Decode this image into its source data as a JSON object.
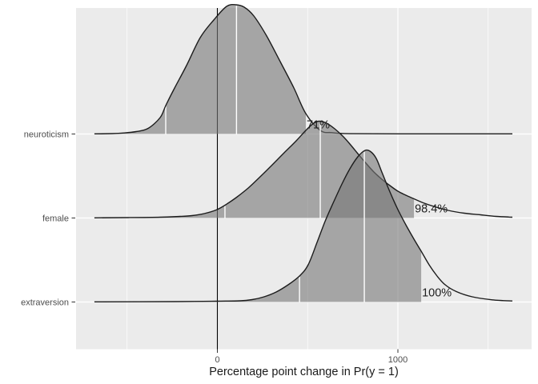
{
  "chart_data": {
    "type": "ridgeline-density",
    "title": "",
    "xlabel": "Percentage point change in Pr(y = 1)",
    "x_axis": {
      "range": [
        -783,
        1741
      ],
      "major_ticks": [
        {
          "value": 0,
          "label": "0"
        },
        {
          "value": 1000,
          "label": "1000"
        }
      ],
      "minor_gridlines": [
        -500,
        500,
        1500
      ],
      "grid": "on"
    },
    "y_axis": {
      "categories_top_to_bottom": [
        "neuroticism",
        "female",
        "extraversion"
      ]
    },
    "reference_line_x": 0,
    "rows": [
      {
        "label": "neuroticism",
        "annotation": "71%",
        "fill_to": 490,
        "quantile_lines": [
          -286,
          106
        ],
        "curve_range": [
          -681,
          1634
        ],
        "points": [
          [
            -681,
            0.2
          ],
          [
            -583,
            0.5
          ],
          [
            -517,
            1.3
          ],
          [
            -450,
            3
          ],
          [
            -384,
            7
          ],
          [
            -317,
            20.5
          ],
          [
            -286,
            35.5
          ],
          [
            -237,
            57.5
          ],
          [
            -171,
            85.5
          ],
          [
            -95,
            120.5
          ],
          [
            -20,
            142.5
          ],
          [
            51,
            159.5
          ],
          [
            104,
            161.5
          ],
          [
            149,
            158.5
          ],
          [
            202,
            147.5
          ],
          [
            273,
            122.5
          ],
          [
            348,
            90.5
          ],
          [
            424,
            57.5
          ],
          [
            490,
            25.5
          ],
          [
            570,
            4.5
          ],
          [
            636,
            1.7
          ],
          [
            729,
            0.4
          ],
          [
            1013,
            0.2
          ],
          [
            1634,
            0.2
          ]
        ]
      },
      {
        "label": "female",
        "annotation": "98.4%",
        "fill_to": 1089,
        "quantile_lines": [
          42,
          570
        ],
        "curve_range": [
          -681,
          1634
        ],
        "points": [
          [
            -681,
            0.2
          ],
          [
            -494,
            0.5
          ],
          [
            -317,
            1
          ],
          [
            -206,
            2
          ],
          [
            -140,
            3
          ],
          [
            -73,
            5.5
          ],
          [
            -7,
            10
          ],
          [
            42,
            16
          ],
          [
            104,
            25.5
          ],
          [
            171,
            37.5
          ],
          [
            237,
            51.5
          ],
          [
            304,
            66.5
          ],
          [
            370,
            81.5
          ],
          [
            437,
            96.5
          ],
          [
            490,
            109.5
          ],
          [
            534,
            118.5
          ],
          [
            565,
            121
          ],
          [
            605,
            118.5
          ],
          [
            650,
            111.5
          ],
          [
            694,
            102.5
          ],
          [
            734,
            92.5
          ],
          [
            778,
            80.5
          ],
          [
            823,
            68.5
          ],
          [
            867,
            57.5
          ],
          [
            911,
            48.5
          ],
          [
            956,
            40.5
          ],
          [
            1000,
            33.5
          ],
          [
            1044,
            28.5
          ],
          [
            1089,
            24
          ],
          [
            1146,
            18.5
          ],
          [
            1213,
            13.5
          ],
          [
            1279,
            9.5
          ],
          [
            1368,
            6
          ],
          [
            1457,
            4
          ],
          [
            1545,
            2
          ],
          [
            1634,
            1
          ]
        ]
      },
      {
        "label": "extraversion",
        "annotation": "100%",
        "fill_to": 1129,
        "quantile_lines": [
          455,
          814
        ],
        "curve_range": [
          -681,
          1634
        ],
        "points": [
          [
            -681,
            0.2
          ],
          [
            -228,
            0.5
          ],
          [
            -7,
            1
          ],
          [
            126,
            1.5
          ],
          [
            193,
            3
          ],
          [
            259,
            6.5
          ],
          [
            326,
            12.5
          ],
          [
            392,
            21.5
          ],
          [
            455,
            32.5
          ],
          [
            503,
            46.5
          ],
          [
            552,
            74.5
          ],
          [
            596,
            100.5
          ],
          [
            641,
            123.5
          ],
          [
            690,
            147.5
          ],
          [
            734,
            166.5
          ],
          [
            778,
            181.5
          ],
          [
            818,
            189.5
          ],
          [
            849,
            188
          ],
          [
            880,
            179.5
          ],
          [
            911,
            162.5
          ],
          [
            956,
            137.5
          ],
          [
            1000,
            115.5
          ],
          [
            1044,
            96.5
          ],
          [
            1089,
            78.5
          ],
          [
            1129,
            63.5
          ],
          [
            1173,
            46.5
          ],
          [
            1217,
            32.5
          ],
          [
            1262,
            21.5
          ],
          [
            1324,
            13
          ],
          [
            1412,
            6.5
          ],
          [
            1523,
            2.7
          ],
          [
            1634,
            1.3
          ]
        ]
      }
    ],
    "colors": {
      "panel_bg": "#EBEBEB",
      "grid": "#FFFFFF",
      "density_fill": "rgba(118,118,118,0.60)",
      "density_stroke": "#1C1C1C",
      "quantile_line": "#FFFFFF",
      "zero_line": "#000000",
      "axis_text": "#4D4D4D",
      "tick_mark": "#333333",
      "title_text": "#1A1A1A",
      "annotation_text": "#202020"
    }
  }
}
